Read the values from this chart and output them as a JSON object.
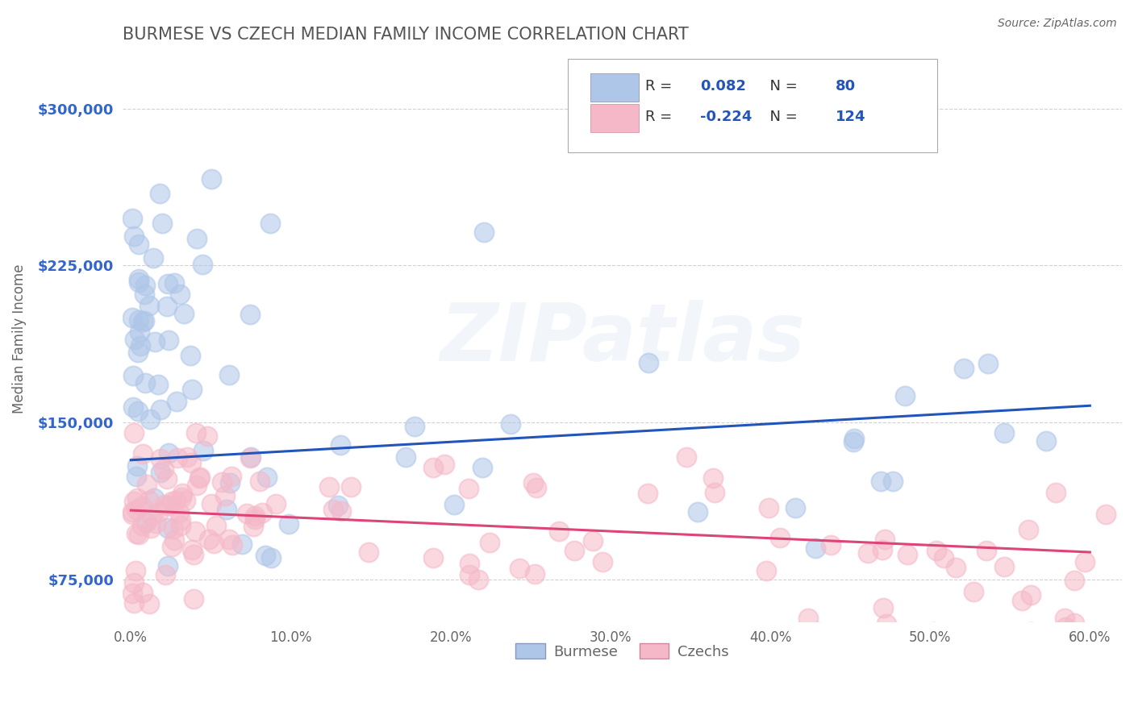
{
  "title": "BURMESE VS CZECH MEDIAN FAMILY INCOME CORRELATION CHART",
  "source": "Source: ZipAtlas.com",
  "ylabel": "Median Family Income",
  "xlim": [
    -0.005,
    0.62
  ],
  "ylim": [
    55000,
    325000
  ],
  "yticks": [
    75000,
    150000,
    225000,
    300000
  ],
  "ytick_labels": [
    "$75,000",
    "$150,000",
    "$225,000",
    "$300,000"
  ],
  "xticks": [
    0.0,
    0.1,
    0.2,
    0.3,
    0.4,
    0.5,
    0.6
  ],
  "xtick_labels": [
    "0.0%",
    "10.0%",
    "20.0%",
    "30.0%",
    "40.0%",
    "50.0%",
    "60.0%"
  ],
  "burmese_R": 0.082,
  "burmese_N": 80,
  "czech_R": -0.224,
  "czech_N": 124,
  "burmese_color": "#aec6e8",
  "czech_color": "#f5b8c8",
  "burmese_line_color": "#2255bb",
  "czech_line_color": "#dd4477",
  "burmese_trend": [
    132000,
    158000
  ],
  "czech_trend": [
    108000,
    88000
  ],
  "legend_blue_label": "Burmese",
  "legend_pink_label": "Czechs",
  "watermark": "ZIPatlas",
  "background_color": "#ffffff",
  "grid_color": "#cccccc",
  "title_color": "#555555",
  "axis_label_color": "#666666",
  "ytick_color": "#3366cc",
  "xtick_color": "#666666"
}
